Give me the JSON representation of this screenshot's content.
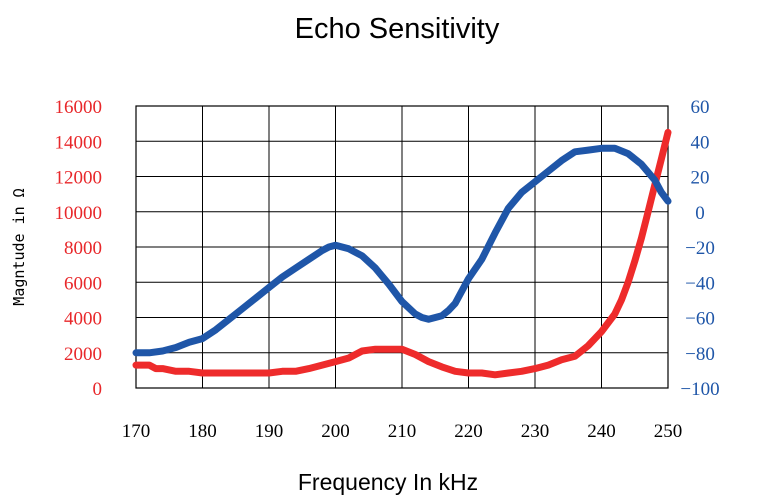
{
  "chart_data": {
    "type": "line",
    "title": "Echo Sensitivity",
    "xlabel": "Frequency In kHz",
    "ylabel": "Magntude in Ω",
    "xlim": [
      170,
      250
    ],
    "x_ticks": [
      "170",
      "180",
      "190",
      "200",
      "210",
      "220",
      "230",
      "240",
      "250"
    ],
    "ylim_left": [
      0,
      16000
    ],
    "y_ticks_left": [
      "0",
      "2000",
      "4000",
      "6000",
      "8000",
      "10000",
      "12000",
      "14000",
      "16000"
    ],
    "ylim_right": [
      -100,
      60
    ],
    "y_ticks_right": [
      "−100",
      "−80",
      "−60",
      "−40",
      "−20",
      "0",
      "20",
      "40",
      "60"
    ],
    "grid": true,
    "legend": "none",
    "colors": {
      "left_axis": "#e8272a",
      "right_axis": "#1f56a8",
      "magnitude_line": "#ee2b2b",
      "phase_line": "#1f56a8",
      "grid": "#000000"
    },
    "series": [
      {
        "axis": "left",
        "x": [
          170,
          172,
          173,
          174,
          176,
          178,
          180,
          182,
          184,
          186,
          188,
          190,
          192,
          194,
          196,
          198,
          200,
          202,
          204,
          206,
          208,
          210,
          212,
          214,
          216,
          218,
          220,
          222,
          224,
          226,
          228,
          230,
          232,
          234,
          236,
          238,
          240,
          242,
          243,
          244,
          245,
          246,
          247,
          248,
          249,
          250
        ],
        "values": [
          1300,
          1300,
          1100,
          1100,
          950,
          950,
          850,
          850,
          850,
          850,
          850,
          850,
          950,
          950,
          1100,
          1300,
          1500,
          1700,
          2100,
          2200,
          2200,
          2200,
          1900,
          1500,
          1200,
          950,
          850,
          850,
          750,
          850,
          950,
          1100,
          1300,
          1600,
          1800,
          2400,
          3200,
          4200,
          5000,
          6000,
          7200,
          8500,
          10000,
          11500,
          13000,
          14500
        ]
      },
      {
        "axis": "right",
        "x": [
          170,
          172,
          174,
          176,
          178,
          180,
          182,
          184,
          186,
          188,
          190,
          192,
          194,
          196,
          198,
          199,
          200,
          201,
          202,
          204,
          206,
          208,
          210,
          212,
          213,
          214,
          215,
          216,
          217,
          218,
          220,
          222,
          224,
          226,
          228,
          230,
          232,
          234,
          236,
          238,
          240,
          242,
          244,
          246,
          248,
          249,
          250
        ],
        "values": [
          -80,
          -80,
          -79,
          -77,
          -74,
          -72,
          -67,
          -61,
          -55,
          -49,
          -43,
          -37,
          -32,
          -27,
          -22,
          -20,
          -19,
          -20,
          -21,
          -25,
          -32,
          -41,
          -51,
          -58,
          -60,
          -61,
          -60,
          -59,
          -56,
          -52,
          -38,
          -27,
          -12,
          2,
          11,
          17,
          23,
          29,
          34,
          35,
          36,
          36,
          33,
          27,
          18,
          11,
          6
        ]
      }
    ]
  }
}
